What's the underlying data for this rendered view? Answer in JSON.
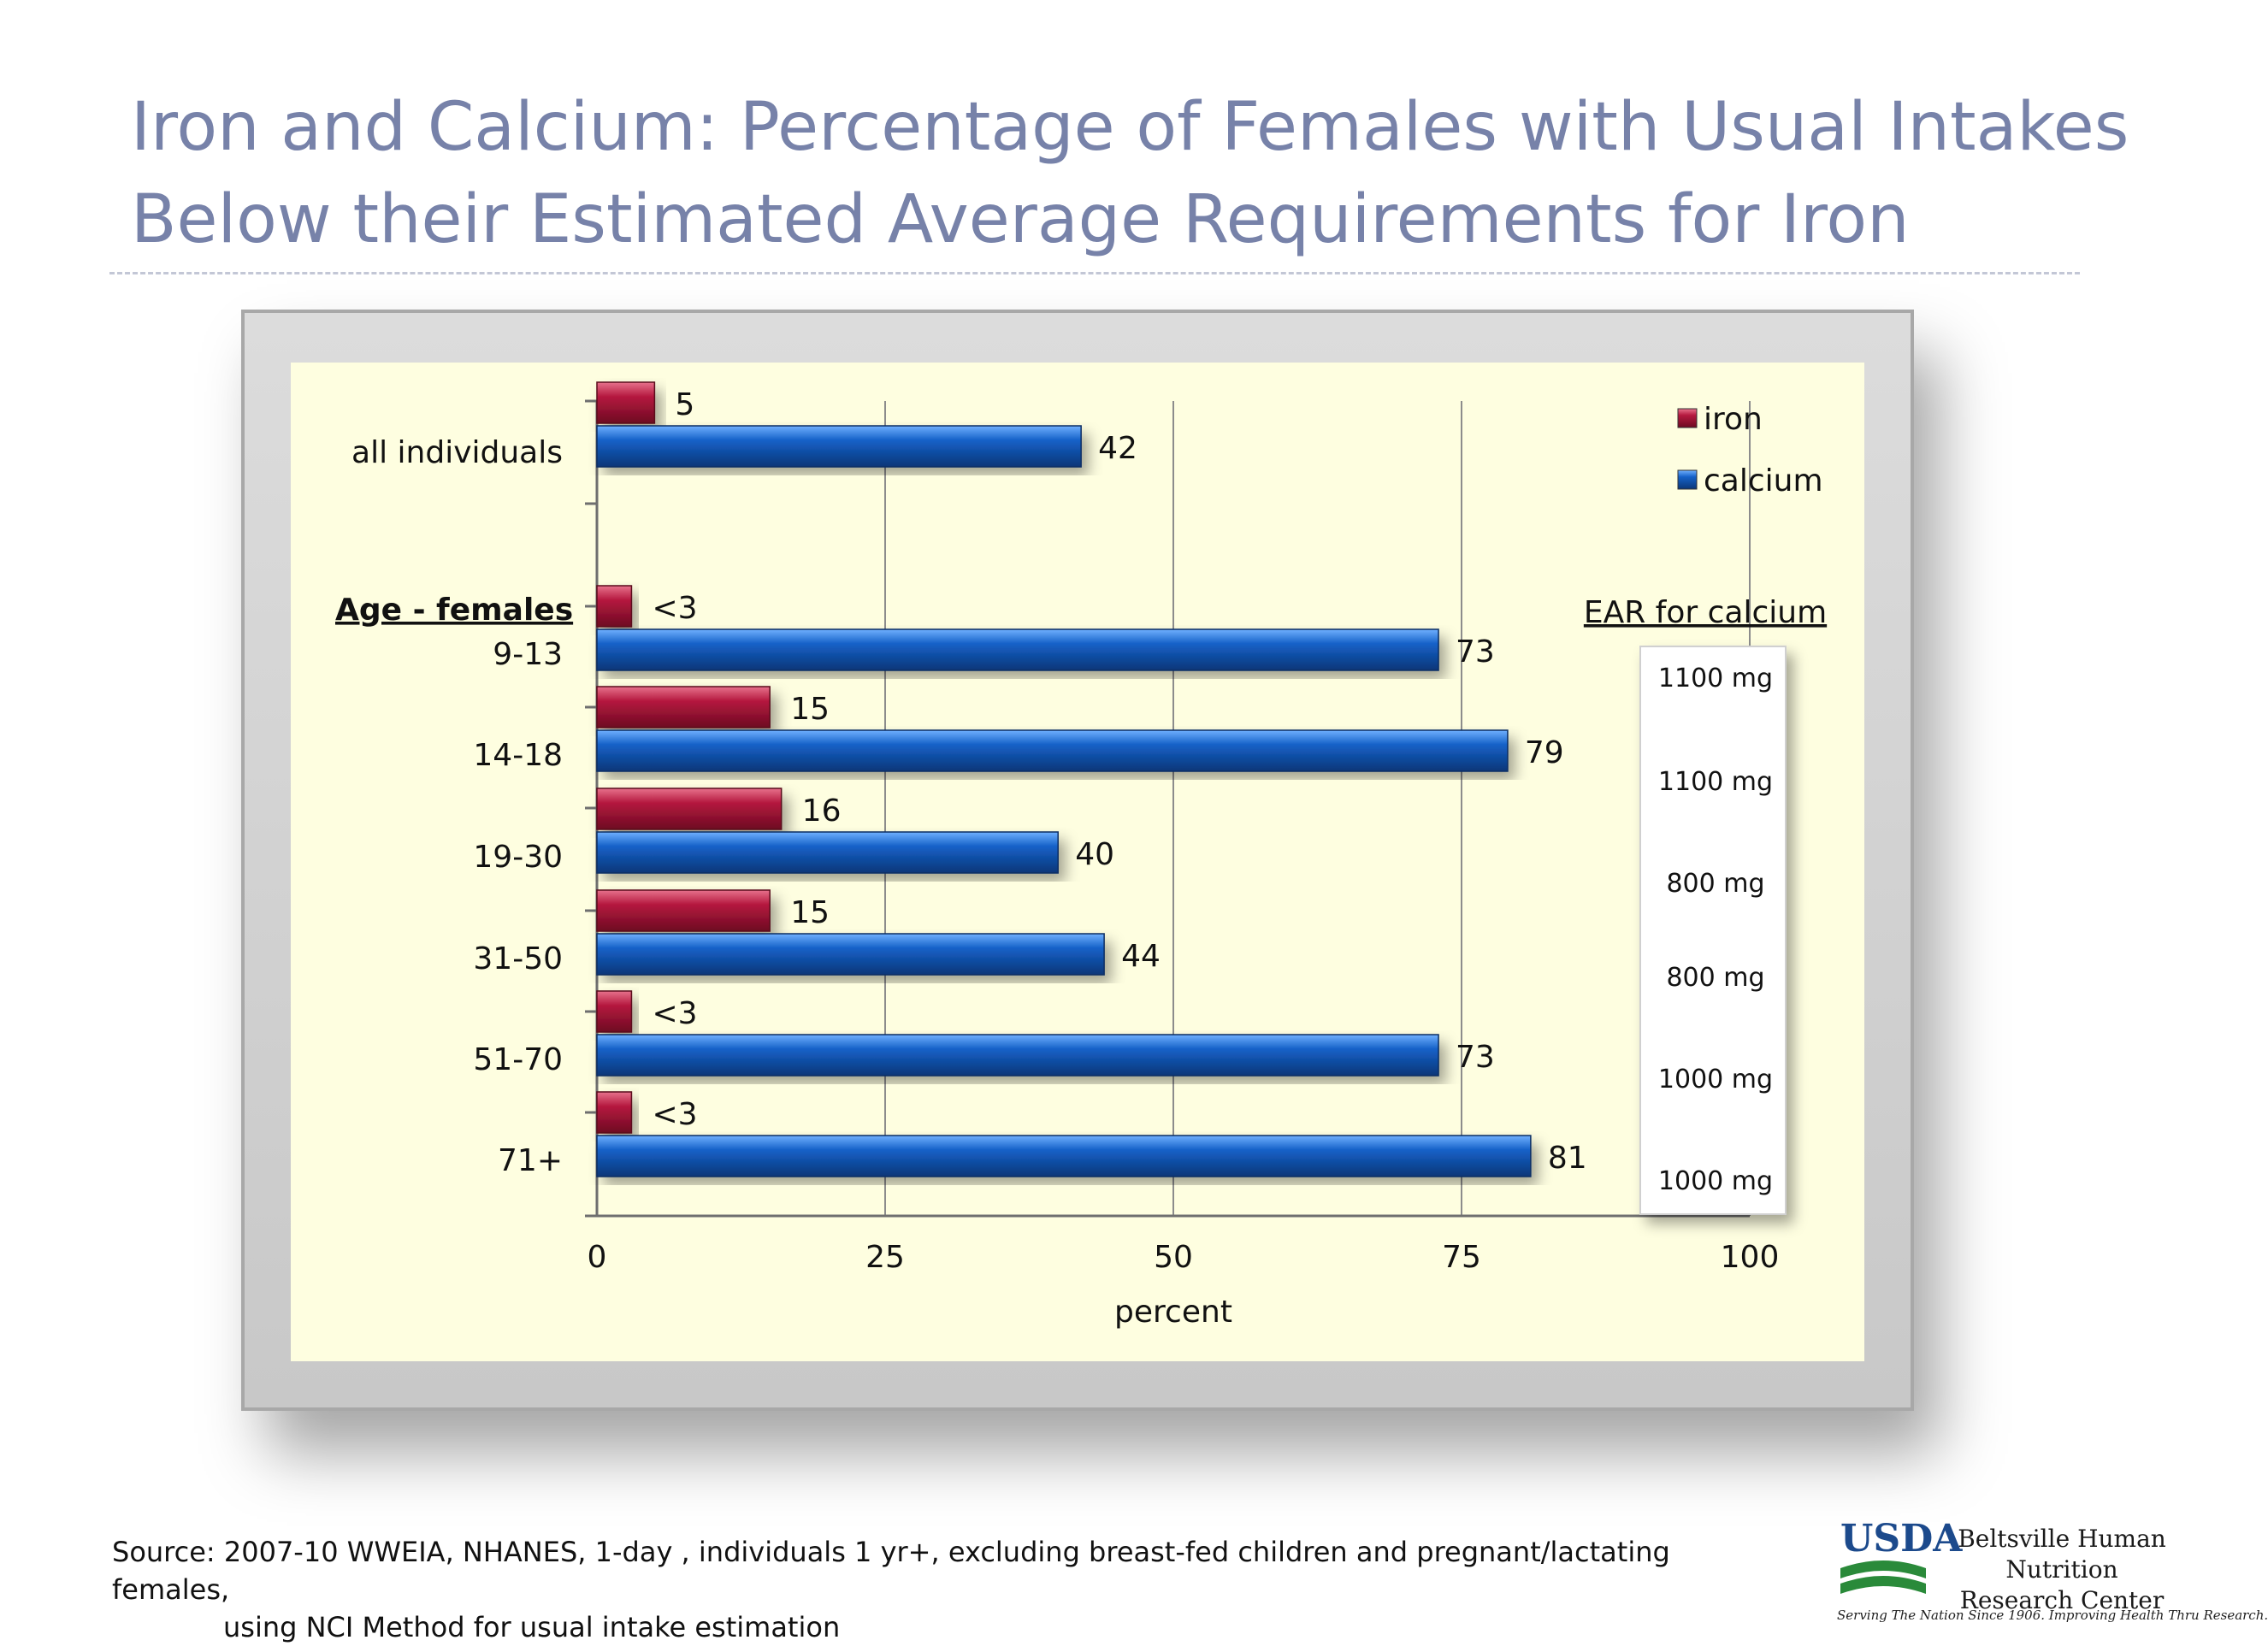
{
  "title": {
    "line1": "Iron and Calcium:  Percentage of Females with Usual Intakes",
    "line2": "Below their Estimated Average Requirements for Iron"
  },
  "chart_data": {
    "type": "bar",
    "orientation": "horizontal",
    "categories": [
      "all individuals",
      "9-13",
      "14-18",
      "19-30",
      "31-50",
      "51-70",
      "71+"
    ],
    "category_header": "Age - females",
    "series": [
      {
        "name": "iron",
        "color": "#b5193f",
        "values": [
          5,
          3,
          15,
          16,
          15,
          3,
          3
        ],
        "labels": [
          "5",
          "<3",
          "15",
          "16",
          "15",
          "<3",
          "<3"
        ]
      },
      {
        "name": "calcium",
        "color": "#1561c8",
        "values": [
          42,
          73,
          79,
          40,
          44,
          73,
          81
        ],
        "labels": [
          "42",
          "73",
          "79",
          "40",
          "44",
          "73",
          "81"
        ]
      }
    ],
    "xlabel": "percent",
    "xlim": [
      0,
      100
    ],
    "xticks": [
      0,
      25,
      50,
      75,
      100
    ],
    "grid": true,
    "legend": "top-right",
    "ear_header": "EAR for calcium",
    "ear_values": [
      "",
      "1100 mg",
      "1100 mg",
      "800 mg",
      "800 mg",
      "1000 mg",
      "1000 mg"
    ]
  },
  "source": {
    "line1": "Source:  2007-10 WWEIA, NHANES, 1-day , individuals 1 yr+, excluding breast-fed children and pregnant/lactating females,",
    "line2": "using NCI Method for usual intake estimation"
  },
  "logo": {
    "usda": "USDA",
    "center_line1": "Beltsville Human Nutrition",
    "center_line2": "Research Center",
    "tagline": "Serving The Nation Since 1906. Improving Health Thru Research."
  }
}
